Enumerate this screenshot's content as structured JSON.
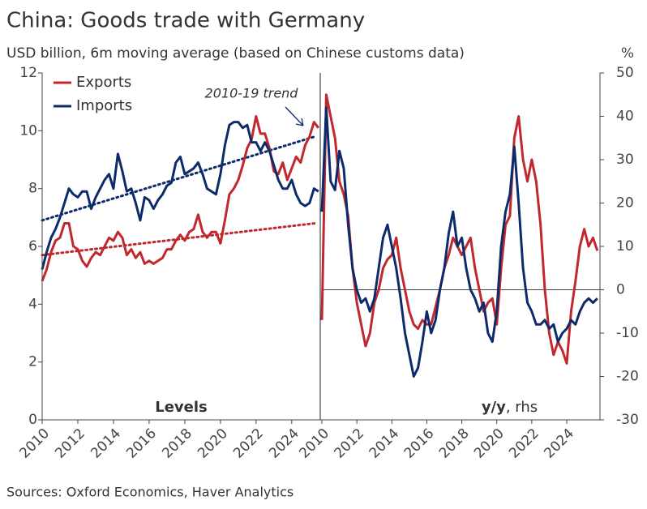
{
  "title": "China: Goods trade with Germany",
  "subtitle": "USD billion, 6m moving average (based on Chinese customs data)",
  "source": "Sources: Oxford Economics, Haver Analytics",
  "chart_data": [
    {
      "type": "line",
      "panel_label": "Levels",
      "x": [
        2010,
        2010.25,
        2010.5,
        2010.75,
        2011,
        2011.25,
        2011.5,
        2011.75,
        2012,
        2012.25,
        2012.5,
        2012.75,
        2013,
        2013.25,
        2013.5,
        2013.75,
        2014,
        2014.25,
        2014.5,
        2014.75,
        2015,
        2015.25,
        2015.5,
        2015.75,
        2016,
        2016.25,
        2016.5,
        2016.75,
        2017,
        2017.25,
        2017.5,
        2017.75,
        2018,
        2018.25,
        2018.5,
        2018.75,
        2019,
        2019.25,
        2019.5,
        2019.75,
        2020,
        2020.25,
        2020.5,
        2020.75,
        2021,
        2021.25,
        2021.5,
        2021.75,
        2022,
        2022.25,
        2022.5,
        2022.75,
        2023,
        2023.25,
        2023.5,
        2023.75,
        2024,
        2024.25,
        2024.5,
        2024.75,
        2025,
        2025.25,
        2025.5
      ],
      "series": [
        {
          "name": "Exports",
          "color": "#c0282d",
          "values": [
            4.8,
            5.2,
            5.8,
            6.2,
            6.3,
            6.8,
            6.8,
            6.0,
            5.9,
            5.5,
            5.3,
            5.6,
            5.8,
            5.7,
            6.0,
            6.3,
            6.2,
            6.5,
            6.3,
            5.7,
            5.9,
            5.6,
            5.8,
            5.4,
            5.5,
            5.4,
            5.5,
            5.6,
            5.9,
            5.9,
            6.2,
            6.4,
            6.2,
            6.5,
            6.6,
            7.1,
            6.5,
            6.3,
            6.5,
            6.5,
            6.1,
            6.9,
            7.8,
            8.0,
            8.3,
            8.8,
            9.4,
            9.7,
            10.5,
            9.9,
            9.9,
            9.4,
            8.6,
            8.5,
            8.9,
            8.3,
            8.7,
            9.1,
            8.9,
            9.5,
            9.8,
            10.3,
            10.1
          ]
        },
        {
          "name": "Imports",
          "color": "#0d2b6b",
          "values": [
            5.2,
            5.8,
            6.3,
            6.6,
            7.0,
            7.5,
            8.0,
            7.8,
            7.7,
            7.9,
            7.9,
            7.3,
            7.7,
            8.0,
            8.3,
            8.5,
            8.0,
            9.2,
            8.6,
            7.9,
            8.0,
            7.5,
            6.9,
            7.7,
            7.6,
            7.3,
            7.6,
            7.8,
            8.1,
            8.2,
            8.9,
            9.1,
            8.5,
            8.6,
            8.7,
            8.9,
            8.5,
            8.0,
            7.9,
            7.8,
            8.5,
            9.5,
            10.2,
            10.3,
            10.3,
            10.1,
            10.2,
            9.6,
            9.6,
            9.3,
            9.6,
            9.3,
            8.8,
            8.3,
            8.0,
            8.0,
            8.3,
            7.8,
            7.5,
            7.4,
            7.5,
            8.0,
            7.9
          ]
        }
      ],
      "trends": [
        {
          "color": "#c0282d",
          "x": [
            2010,
            2025.3
          ],
          "values": [
            5.7,
            6.8
          ]
        },
        {
          "color": "#0d2b6b",
          "x": [
            2010,
            2025.3
          ],
          "values": [
            6.9,
            9.8
          ]
        }
      ],
      "annotation": "2010-19 trend",
      "xlim": [
        2010,
        2025.6
      ],
      "xticks": [
        2010,
        2012,
        2014,
        2016,
        2018,
        2020,
        2022,
        2024
      ],
      "ylim": [
        0,
        12
      ],
      "yticks": [
        0,
        2,
        4,
        6,
        8,
        10,
        12
      ],
      "legend": "top-left"
    },
    {
      "type": "line",
      "panel_label": "y/y",
      "panel_label_suffix": ", rhs",
      "unit": "%",
      "x": [
        2010,
        2010.25,
        2010.5,
        2010.75,
        2011,
        2011.25,
        2011.5,
        2011.75,
        2012,
        2012.25,
        2012.5,
        2012.75,
        2013,
        2013.25,
        2013.5,
        2013.75,
        2014,
        2014.25,
        2014.5,
        2014.75,
        2015,
        2015.25,
        2015.5,
        2015.75,
        2016,
        2016.25,
        2016.5,
        2016.75,
        2017,
        2017.25,
        2017.5,
        2017.75,
        2018,
        2018.25,
        2018.5,
        2018.75,
        2019,
        2019.25,
        2019.5,
        2019.75,
        2020,
        2020.25,
        2020.5,
        2020.75,
        2021,
        2021.25,
        2021.5,
        2021.75,
        2022,
        2022.25,
        2022.5,
        2022.75,
        2023,
        2023.25,
        2023.5,
        2023.75,
        2024,
        2024.25,
        2024.5,
        2024.75,
        2025,
        2025.25,
        2025.5,
        2025.75
      ],
      "series": [
        {
          "name": "Exports",
          "color": "#c0282d",
          "values": [
            -7,
            45,
            40,
            35,
            25,
            22,
            17,
            5,
            -3,
            -8,
            -13,
            -10,
            -3,
            0,
            5,
            7,
            8,
            12,
            5,
            0,
            -5,
            -8,
            -9,
            -7,
            -8,
            -8,
            -4,
            0,
            5,
            8,
            12,
            10,
            8,
            10,
            12,
            5,
            0,
            -5,
            -3,
            -2,
            -8,
            5,
            15,
            17,
            35,
            40,
            30,
            25,
            30,
            25,
            15,
            0,
            -10,
            -15,
            -12,
            -14,
            -17,
            -5,
            2,
            10,
            14,
            10,
            12,
            9
          ]
        },
        {
          "name": "Imports",
          "color": "#0d2b6b",
          "values": [
            18,
            42,
            25,
            23,
            32,
            28,
            15,
            5,
            0,
            -3,
            -2,
            -5,
            -2,
            5,
            12,
            15,
            10,
            5,
            -2,
            -10,
            -15,
            -20,
            -18,
            -12,
            -5,
            -10,
            -7,
            0,
            5,
            13,
            18,
            10,
            12,
            5,
            0,
            -2,
            -5,
            -3,
            -10,
            -12,
            -5,
            10,
            18,
            22,
            33,
            20,
            5,
            -3,
            -5,
            -8,
            -8,
            -7,
            -9,
            -8,
            -12,
            -10,
            -9,
            -7,
            -8,
            -5,
            -3,
            -2,
            -3,
            -2
          ]
        }
      ],
      "xlim": [
        2010,
        2025.9
      ],
      "xticks": [
        2010,
        2012,
        2014,
        2016,
        2018,
        2020,
        2022,
        2024
      ],
      "ylim": [
        -30,
        50
      ],
      "yticks": [
        -30,
        -20,
        -10,
        0,
        10,
        20,
        30,
        40,
        50
      ],
      "zero_line": true
    }
  ]
}
